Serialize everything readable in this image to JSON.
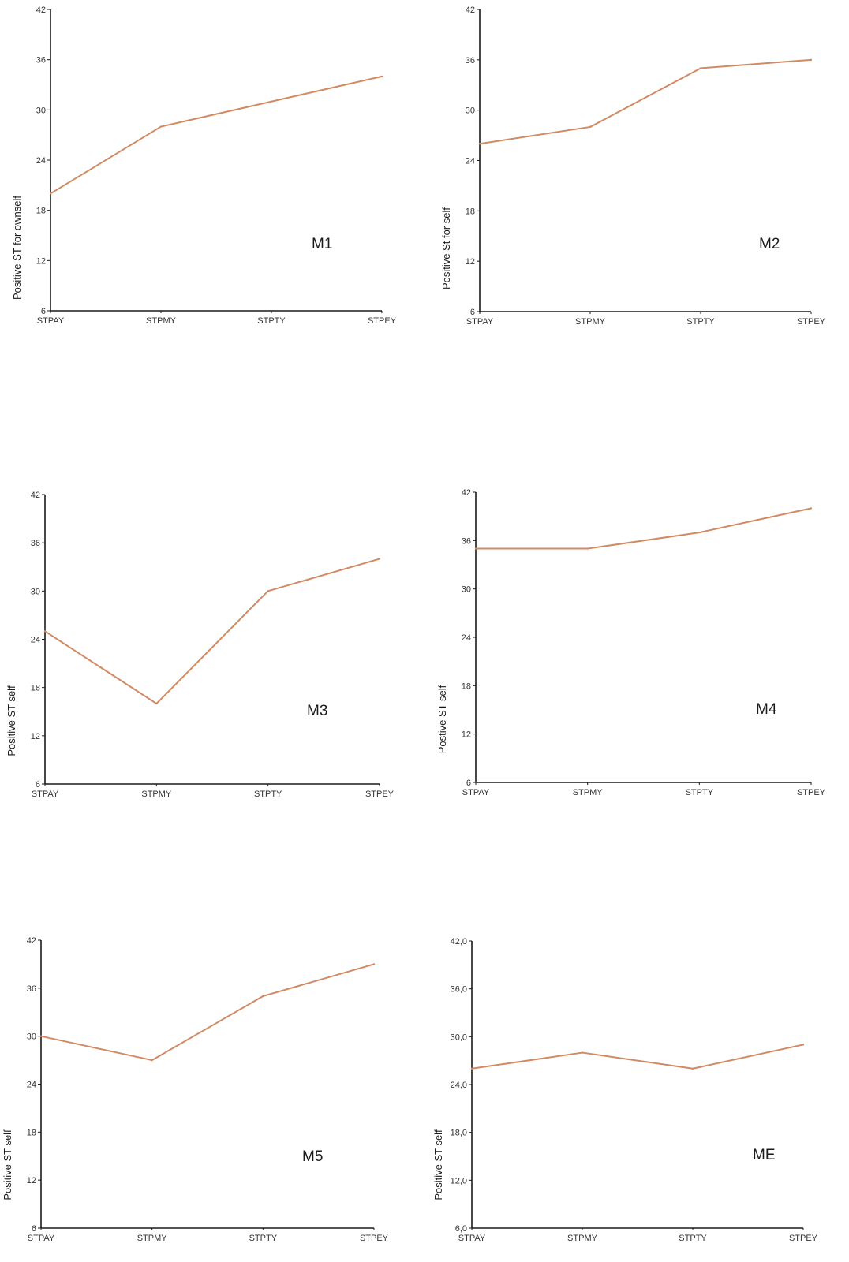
{
  "chart_data": [
    {
      "type": "line",
      "label": "M1",
      "ylabel": "Positive ST for ownself",
      "categories": [
        "STPAY",
        "STPMY",
        "STPTY",
        "STPEY"
      ],
      "yticks": [
        "6",
        "12",
        "18",
        "24",
        "30",
        "36",
        "42"
      ],
      "ylim": [
        6,
        42
      ],
      "values": [
        20,
        28,
        31,
        34
      ],
      "color": "#d08a64"
    },
    {
      "type": "line",
      "label": "M2",
      "ylabel": "Positive St for self",
      "categories": [
        "STPAY",
        "STPMY",
        "STPTY",
        "STPEY"
      ],
      "yticks": [
        "6",
        "12",
        "18",
        "24",
        "30",
        "36",
        "42"
      ],
      "ylim": [
        6,
        42
      ],
      "values": [
        26,
        28,
        35,
        36
      ],
      "color": "#d08a64"
    },
    {
      "type": "line",
      "label": "M3",
      "ylabel": "Positive ST self",
      "categories": [
        "STPAY",
        "STPMY",
        "STPTY",
        "STPEY"
      ],
      "yticks": [
        "6",
        "12",
        "18",
        "24",
        "30",
        "36",
        "42"
      ],
      "ylim": [
        6,
        42
      ],
      "values": [
        25,
        16,
        30,
        34
      ],
      "color": "#d08a64"
    },
    {
      "type": "line",
      "label": "M4",
      "ylabel": "Postive ST self",
      "categories": [
        "STPAY",
        "STPMY",
        "STPTY",
        "STPEY"
      ],
      "yticks": [
        "6",
        "12",
        "18",
        "24",
        "30",
        "36",
        "42"
      ],
      "ylim": [
        6,
        42
      ],
      "values": [
        35,
        35,
        37,
        40
      ],
      "color": "#d08a64"
    },
    {
      "type": "line",
      "label": "M5",
      "ylabel": "Positive ST self",
      "categories": [
        "STPAY",
        "STPMY",
        "STPTY",
        "STPEY"
      ],
      "yticks": [
        "6",
        "12",
        "18",
        "24",
        "30",
        "36",
        "42"
      ],
      "ylim": [
        6,
        42
      ],
      "values": [
        30,
        27,
        35,
        39
      ],
      "color": "#d08a64"
    },
    {
      "type": "line",
      "label": "ME",
      "ylabel": "Positive ST self",
      "categories": [
        "STPAY",
        "STPMY",
        "STPTY",
        "STPEY"
      ],
      "yticks": [
        "6,0",
        "12,0",
        "18,0",
        "24,0",
        "30,0",
        "36,0",
        "42,0"
      ],
      "ylim": [
        6,
        42
      ],
      "values": [
        26,
        28,
        26,
        29
      ],
      "color": "#d08a64"
    }
  ]
}
